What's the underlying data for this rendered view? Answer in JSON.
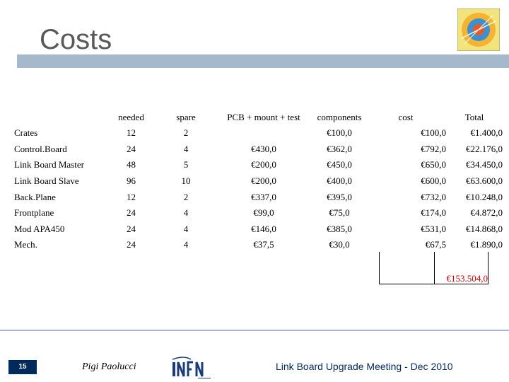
{
  "header": {
    "title": "Costs"
  },
  "table": {
    "columns": {
      "item": "",
      "needed": "needed",
      "spare": "spare",
      "pcb": "PCB + mount + test",
      "components": "components",
      "cost": "cost",
      "total": "Total"
    },
    "rows": [
      {
        "item": "Crates",
        "needed": "12",
        "spare": "2",
        "pcb": "",
        "components": "€100,0",
        "cost": "€100,0",
        "total": "€1.400,0"
      },
      {
        "item": "Control.Board",
        "needed": "24",
        "spare": "4",
        "pcb": "€430,0",
        "components": "€362,0",
        "cost": "€792,0",
        "total": "€22.176,0"
      },
      {
        "item": "Link Board Master",
        "needed": "48",
        "spare": "5",
        "pcb": "€200,0",
        "components": "€450,0",
        "cost": "€650,0",
        "total": "€34.450,0"
      },
      {
        "item": "Link Board Slave",
        "needed": "96",
        "spare": "10",
        "pcb": "€200,0",
        "components": "€400,0",
        "cost": "€600,0",
        "total": "€63.600,0"
      },
      {
        "item": "Back.Plane",
        "needed": "12",
        "spare": "2",
        "pcb": "€337,0",
        "components": "€395,0",
        "cost": "€732,0",
        "total": "€10.248,0"
      },
      {
        "item": "Frontplane",
        "needed": "24",
        "spare": "4",
        "pcb": "€99,0",
        "components": "€75,0",
        "cost": "€174,0",
        "total": "€4.872,0"
      },
      {
        "item": "Mod APA450",
        "needed": "24",
        "spare": "4",
        "pcb": "€146,0",
        "components": "€385,0",
        "cost": "€531,0",
        "total": "€14.868,0"
      },
      {
        "item": "Mech.",
        "needed": "24",
        "spare": "4",
        "pcb": "€37,5",
        "components": "€30,0",
        "cost": "€67,5",
        "total": "€1.890,0"
      }
    ],
    "grand_total": "€153.504,0"
  },
  "footer": {
    "page_number": "15",
    "author": "Pigi Paolucci",
    "meeting": "Link Board Upgrade Meeting - Dec 2010"
  },
  "colors": {
    "accent_bar": "#a6b8cc",
    "grand_total": "#cc0000",
    "footer_text": "#002a5c"
  },
  "icons": {
    "logo": "cms-logo-icon",
    "footer_logo": "infn-logo-icon"
  }
}
